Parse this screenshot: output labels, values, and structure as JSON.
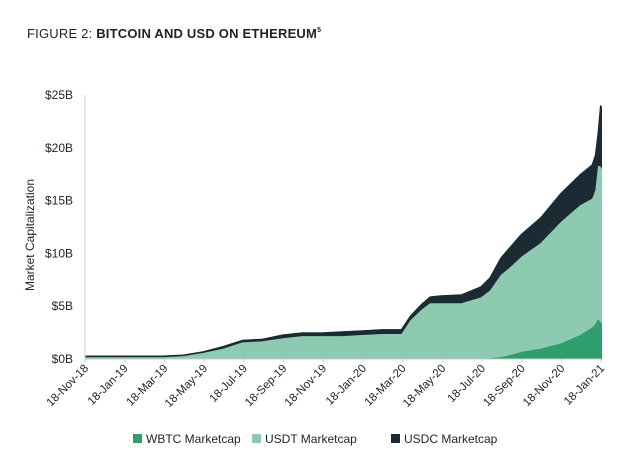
{
  "figure": {
    "label": "FIGURE 2:",
    "title": "BITCOIN AND USD ON ETHEREUM",
    "footnote": "5"
  },
  "chart_data": {
    "type": "area",
    "stacked": true,
    "title": "BITCOIN AND USD ON ETHEREUM",
    "xlabel": "",
    "ylabel": "Market Capitalization",
    "ylim": [
      0,
      25
    ],
    "y_unit": "billion USD",
    "y_ticks": [
      "$0B",
      "$5B",
      "$10B",
      "$15B",
      "$20B",
      "$25B"
    ],
    "x_tick_labels": [
      "18-Nov-18",
      "18-Jan-19",
      "18-Mar-19",
      "18-May-19",
      "18-Jul-19",
      "18-Sep-19",
      "18-Nov-19",
      "18-Jan-20",
      "18-Mar-20",
      "18-May-20",
      "18-Jul-20",
      "18-Sep-20",
      "18-Nov-20",
      "18-Jan-21"
    ],
    "grid": false,
    "legend_position": "bottom",
    "x": [
      "2018-11-18",
      "2018-12-18",
      "2019-01-18",
      "2019-02-18",
      "2019-03-18",
      "2019-04-18",
      "2019-05-18",
      "2019-06-18",
      "2019-07-18",
      "2019-08-18",
      "2019-09-18",
      "2019-10-18",
      "2019-11-18",
      "2019-12-18",
      "2020-01-18",
      "2020-02-18",
      "2020-03-18",
      "2020-04-01",
      "2020-04-18",
      "2020-05-01",
      "2020-05-18",
      "2020-06-18",
      "2020-07-18",
      "2020-08-01",
      "2020-08-18",
      "2020-09-01",
      "2020-09-18",
      "2020-10-18",
      "2020-11-18",
      "2020-12-18",
      "2021-01-05",
      "2021-01-10",
      "2021-01-14",
      "2021-01-18",
      "2021-01-20"
    ],
    "series": [
      {
        "name": "WBTC Marketcap",
        "color": "#2e9e6d",
        "values": [
          0,
          0,
          0,
          0,
          0,
          0,
          0,
          0,
          0,
          0,
          0,
          0,
          0,
          0,
          0,
          0,
          0,
          0,
          0,
          0,
          0,
          0,
          0.05,
          0.1,
          0.2,
          0.4,
          0.7,
          1.0,
          1.5,
          2.3,
          3.0,
          3.3,
          3.8,
          3.6,
          3.4
        ]
      },
      {
        "name": "USDT Marketcap",
        "color": "#8ec9b1",
        "values": [
          0.2,
          0.2,
          0.2,
          0.2,
          0.2,
          0.3,
          0.6,
          1.0,
          1.6,
          1.7,
          2.0,
          2.2,
          2.2,
          2.2,
          2.3,
          2.4,
          2.4,
          3.7,
          4.7,
          5.3,
          5.3,
          5.3,
          5.8,
          6.4,
          7.8,
          8.3,
          9.0,
          10.0,
          11.5,
          12.3,
          12.2,
          12.7,
          14.5,
          14.7,
          14.7
        ]
      },
      {
        "name": "USDC Marketcap",
        "color": "#1b2a33",
        "values": [
          0.1,
          0.1,
          0.1,
          0.1,
          0.1,
          0.1,
          0.1,
          0.2,
          0.2,
          0.2,
          0.3,
          0.3,
          0.3,
          0.4,
          0.4,
          0.4,
          0.4,
          0.4,
          0.5,
          0.6,
          0.7,
          0.8,
          1.0,
          1.2,
          1.6,
          1.9,
          2.1,
          2.4,
          2.7,
          2.9,
          3.2,
          3.3,
          3.0,
          5.7,
          5.8
        ]
      }
    ]
  }
}
